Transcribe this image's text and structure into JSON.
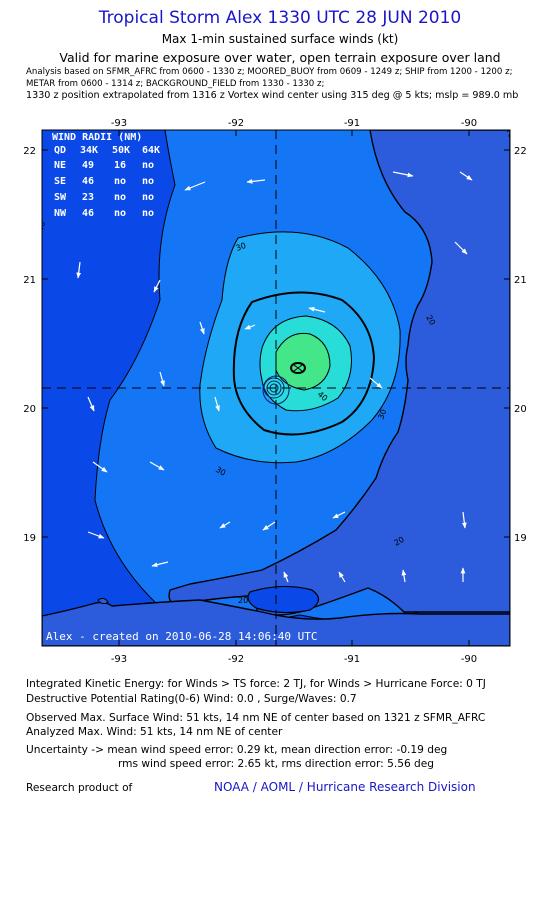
{
  "header": {
    "title": "Tropical Storm Alex 1330 UTC 28 JUN 2010",
    "subtitle": "Max 1-min sustained surface winds (kt)",
    "validity": "Valid for marine exposure over water, open terrain exposure over land",
    "analysis_line1": "Analysis based on   SFMR_AFRC from 0600 - 1330 z;  MOORED_BUOY from 0609 - 1249 z;  SHIP from 1200 - 1200 z;",
    "analysis_line2": "METAR from 0600 - 1314 z;  BACKGROUND_FIELD from 1330 - 1330 z;",
    "extrapolation": "1330 z position extrapolated from 1316 z Vortex wind center using 315 deg @ 5 kts; mslp = 989.0 mb"
  },
  "map": {
    "lon_range": [
      -93.65,
      -89.6
    ],
    "lat_range": [
      18.1,
      22.15
    ],
    "lon_ticks": [
      "-93",
      "-92",
      "-91",
      "-90"
    ],
    "lat_ticks": [
      "22",
      "21",
      "20",
      "19"
    ],
    "center": {
      "lon": -91.65,
      "lat": 20.15
    },
    "contour_labels": [
      "20",
      "20",
      "20",
      "20",
      "20",
      "30",
      "30",
      "30",
      "40"
    ],
    "wind_radii": {
      "title": "WIND RADII (NM)",
      "header": [
        "QD",
        "34K",
        "50K",
        "64K"
      ],
      "rows": [
        [
          "NE",
          "49",
          "16",
          "no"
        ],
        [
          "SE",
          "46",
          "no",
          "no"
        ],
        [
          "SW",
          "23",
          "no",
          "no"
        ],
        [
          "NW",
          "46",
          "no",
          "no"
        ]
      ]
    },
    "created": "Alex - created on 2010-06-28 14:06:40 UTC",
    "colors": {
      "band_lt20": "#0a48e8",
      "band_20_30": "#1476f4",
      "band_30_40": "#1ea8f6",
      "band_40_50": "#28dcd8",
      "band_50_60": "#44e68a",
      "land": "#2c5cdc",
      "coast": "#000000",
      "arrow": "#ffffff"
    }
  },
  "footer": {
    "energy": "Integrated Kinetic Energy:  for Winds > TS force: 2 TJ,  for Winds > Hurricane Force: 0 TJ",
    "rating": "Destructive Potential Rating(0-6)   Wind: 0.0 , Surge/Waves: 0.7",
    "observed": "Observed Max. Surface Wind: 51 kts, 14 nm NE of center based on 1321 z SFMR_AFRC",
    "analyzed": "Analyzed Max. Wind: 51 kts, 14 nm NE of center",
    "uncertainty1": "Uncertainty -> mean wind speed error: 0.29 kt,   mean direction error:  -0.19 deg",
    "uncertainty2": "rms wind speed error: 2.65 kt,   rms direction error: 5.56 deg",
    "research": "Research product of",
    "credit": "NOAA / AOML / Hurricane Research Division"
  }
}
